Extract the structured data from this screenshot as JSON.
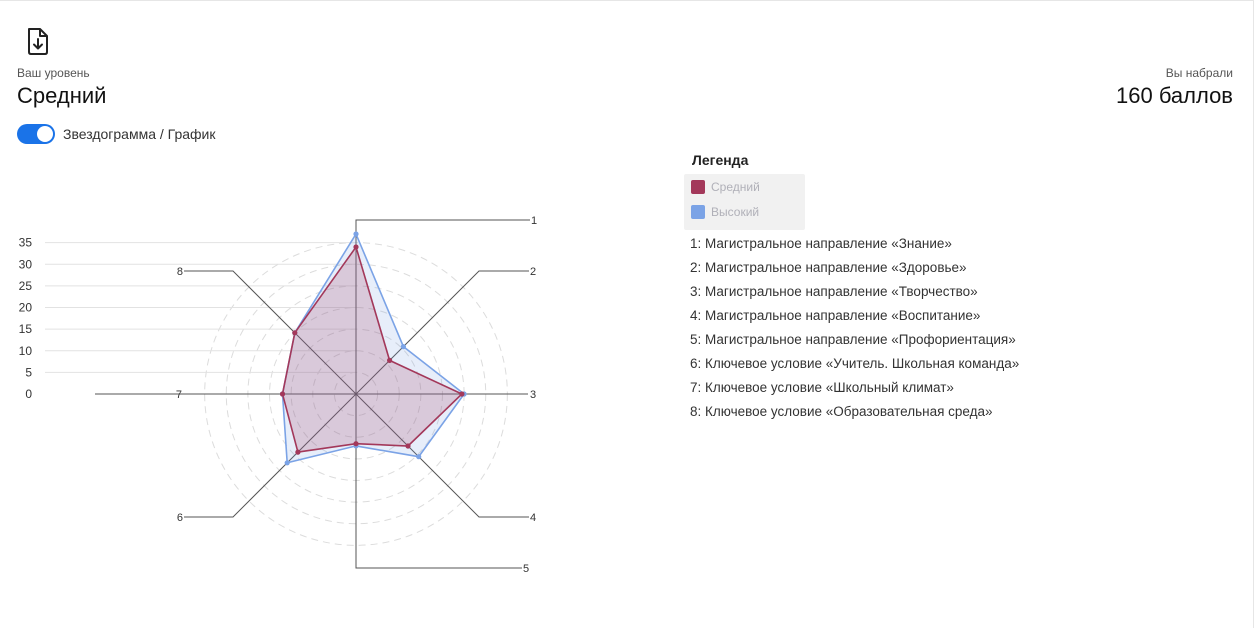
{
  "header": {
    "download_icon": "file-download-icon",
    "level_caption": "Ваш уровень",
    "level_value": "Средний",
    "score_caption": "Вы набрали",
    "score_value": "160 баллов"
  },
  "toggle": {
    "label": "Звездограмма / График",
    "state": "on",
    "color": "#1a73e8"
  },
  "legend": {
    "title": "Легенда",
    "items": [
      {
        "label": "Средний",
        "color": "#a3385a"
      },
      {
        "label": "Высокий",
        "color": "#7ba3e6"
      }
    ]
  },
  "axes_descriptions": [
    "1: Магистральное направление «Знание»",
    "2: Магистральное направление «Здоровье»",
    "3: Магистральное направление «Творчество»",
    "4: Магистральное направление «Воспитание»",
    "5: Магистральное направление «Профориентация»",
    "6: Ключевое условие «Учитель. Школьная команда»",
    "7: Ключевое условие «Школьный климат»",
    "8: Ключевое условие «Образовательная среда»"
  ],
  "chart_data": {
    "type": "radar",
    "axes": [
      "1",
      "2",
      "3",
      "4",
      "5",
      "6",
      "7",
      "8"
    ],
    "scale_ticks": [
      "0",
      "5",
      "10",
      "15",
      "20",
      "25",
      "30",
      "35"
    ],
    "rmax": 37,
    "series": [
      {
        "name": "Средний",
        "color": "#a3385a",
        "values": [
          34,
          11,
          24.5,
          17,
          11.5,
          19,
          17,
          20
        ]
      },
      {
        "name": "Высокий",
        "color": "#7ba3e6",
        "values": [
          37,
          15.5,
          25,
          20.5,
          12,
          22.5,
          17,
          20
        ]
      }
    ]
  }
}
